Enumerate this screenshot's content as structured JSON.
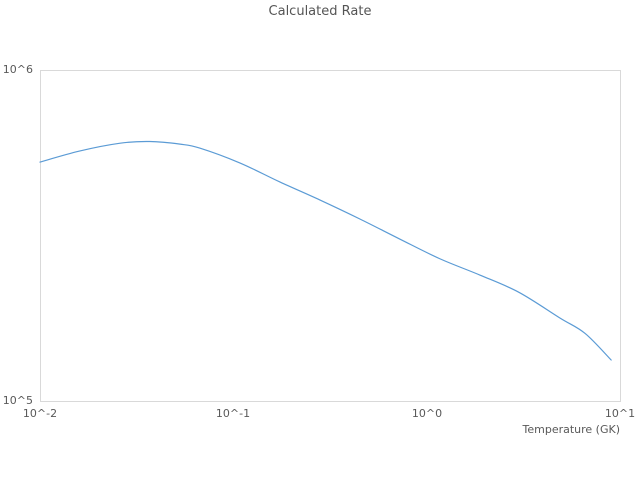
{
  "title": "Calculated Rate",
  "axes": {
    "x": {
      "label": "Temperature (GK)",
      "scale": "log",
      "ticks": [
        "10^-2",
        "10^-1",
        "10^0",
        "10^1"
      ]
    },
    "y": {
      "scale": "log",
      "ticks": [
        "10^5",
        "10^6"
      ]
    }
  },
  "colors": {
    "line": "#5B9BD5",
    "spine": "#D9D9D9",
    "text": "#595959"
  },
  "chart_data": {
    "type": "line",
    "title": "Calculated Rate",
    "xlabel": "Temperature (GK)",
    "ylabel": "",
    "xscale": "log",
    "yscale": "log",
    "xlim": [
      0.01,
      10
    ],
    "ylim": [
      100000,
      1000000
    ],
    "grid": false,
    "legend": false,
    "series": [
      {
        "name": "Calculated Rate",
        "x": [
          0.01,
          0.016,
          0.026,
          0.037,
          0.053,
          0.067,
          0.108,
          0.174,
          0.28,
          0.45,
          0.73,
          1.17,
          1.89,
          3.0,
          4.9,
          6.6,
          9.0
        ],
        "y": [
          527000,
          569000,
          601000,
          608000,
          597000,
          581000,
          524000,
          459000,
          405000,
          355000,
          308000,
          269000,
          240000,
          213000,
          178000,
          160000,
          133000
        ]
      }
    ]
  }
}
